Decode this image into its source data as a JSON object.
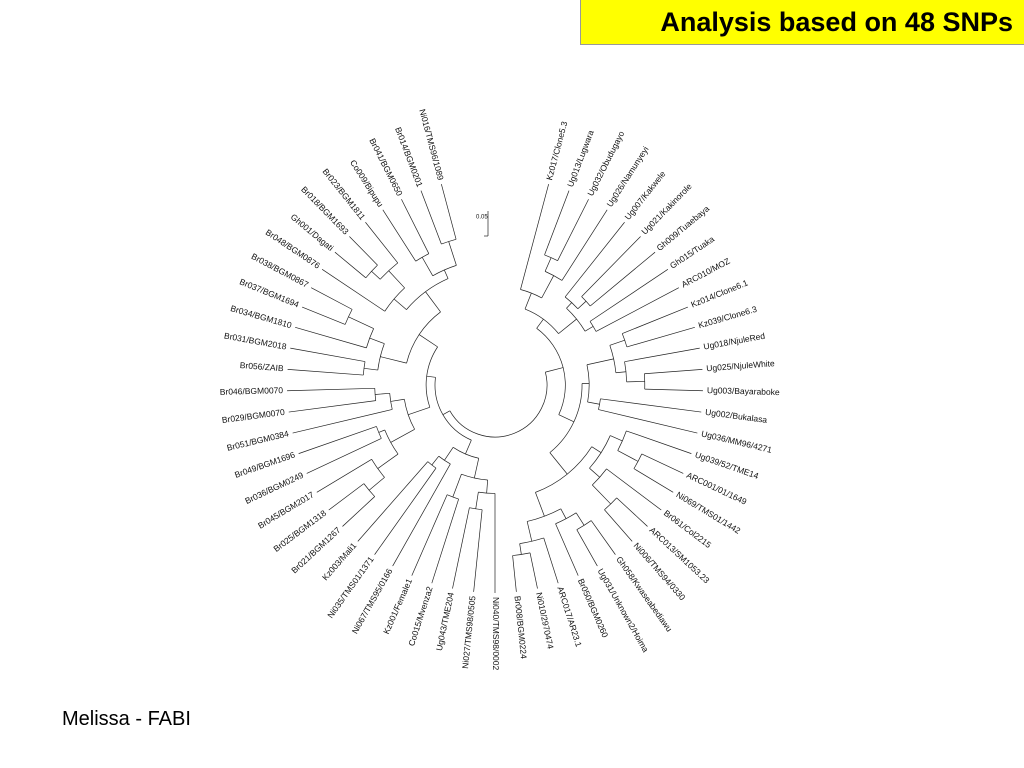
{
  "header": {
    "title": "Analysis based on 48 SNPs"
  },
  "footer": {
    "text": "Melissa - FABI"
  },
  "tree": {
    "scale_label": "0.05",
    "leaves": [
      "Kz017/Clone5.3",
      "Ug013/Lugwara",
      "Ug032/Obudugayo",
      "Ug026/Namunyeyi",
      "Ug007/Kakwele",
      "Ug021/Kakinorole",
      "Gh009/Tuaebaya",
      "Gh015/Tuaka",
      "ARC010/MOZ",
      "Kz014/Clone6.1",
      "Kz039/Clone6.3",
      "Ug018/NjuleRed",
      "Ug025/NjuleWhite",
      "Ug003/Bayaraboke",
      "Ug002/Bukalasa",
      "Ug036/MM96/4271",
      "Ug039/52/TME14",
      "ARC001/01/1649",
      "Ni069/TMS01/1442",
      "Br061/Col2215",
      "ARC013/SM1053.23",
      "Ni006/TMS94/0330",
      "Gh058/Kwaseabediawu",
      "Ug031/Unknown2/Hoima",
      "Br050/BGM0260",
      "ARC017/AR23.1",
      "Ni010/2970474",
      "Br008/BGM0224",
      "Ni040/TMS98/0002",
      "Ni027/TMS98/0505",
      "Ug043/TME204",
      "Co015/Mvenza2",
      "Kz001/Female1",
      "Ni067/TMS95/0166",
      "Ni035/TMS01/1371",
      "Kz003/Mali1",
      "Br021/BGM1267",
      "Br025/BGM1318",
      "Br045/BGM2017",
      "Br036/BGM0249",
      "Br049/BGM1696",
      "Br051/BGM0384",
      "Br029/BGM0070",
      "Br046/BGM0070",
      "Br056/ZAIB",
      "Br031/BGM2018",
      "Br034/BGM1810",
      "Br037/BGM1694",
      "Br038/BGM0867",
      "Br048/BGM0876",
      "Gh001/Dagati",
      "Br018/BGM1693",
      "Br023/BGM1811",
      "Co009/Bipupu",
      "Br041/BGM0650",
      "Br014/BGM0201",
      "Ni016/TMS96/1089"
    ]
  }
}
